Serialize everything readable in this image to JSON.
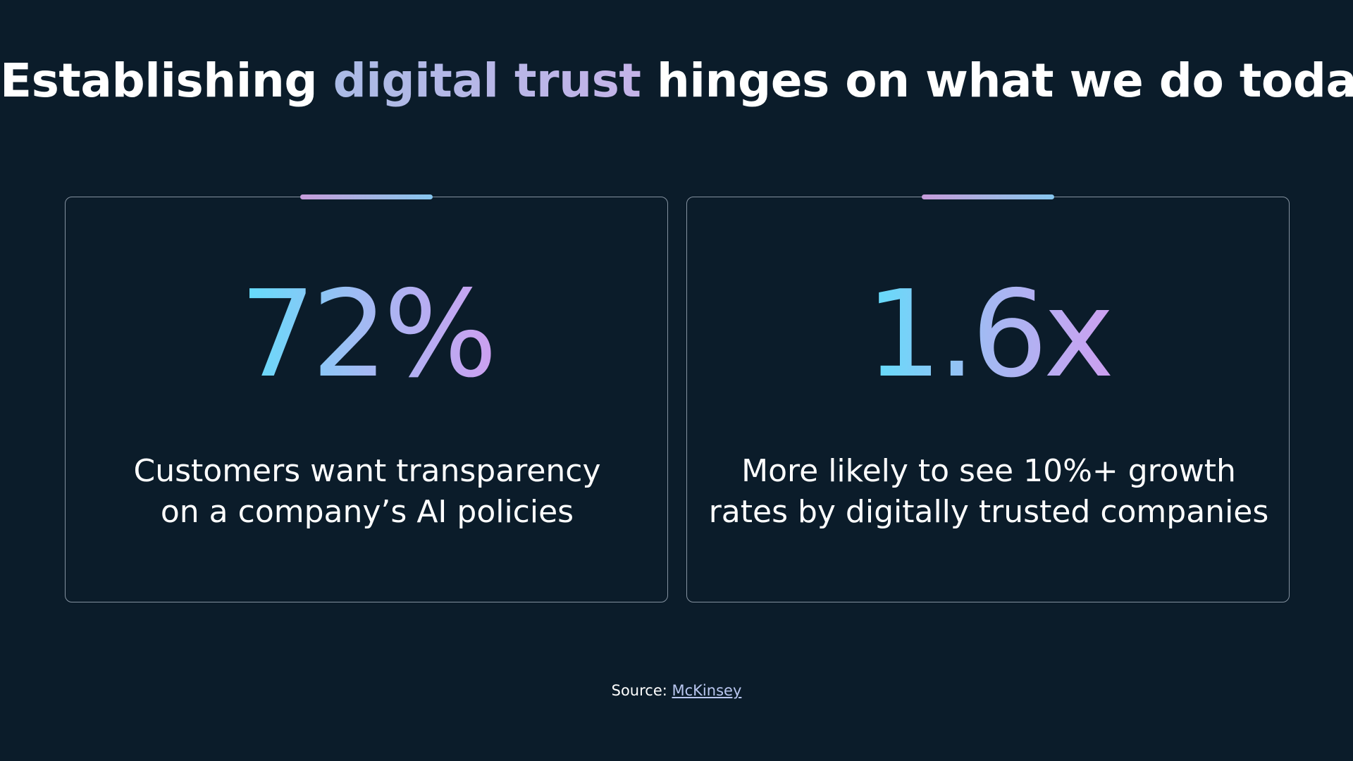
{
  "title": {
    "prefix": "Establishing ",
    "highlight": "digital trust",
    "suffix": " hinges on what we do today"
  },
  "cards": [
    {
      "stat": "72%",
      "line1": "Customers want transparency",
      "line2": "on a company’s AI policies"
    },
    {
      "stat": "1.6x",
      "line1": "More likely to see 10%+ growth",
      "line2": "rates by digitally trusted companies"
    }
  ],
  "source": {
    "label": "Source: ",
    "link_text": "McKinsey"
  },
  "colors": {
    "background": "#0b1c2a",
    "card_border": "#8492a0",
    "stat_gradient": [
      "#5ce0fb",
      "#a4b9f3",
      "#cf9ef0"
    ],
    "title_accent": "#b4b8e8",
    "link": "#b9c6ef"
  }
}
